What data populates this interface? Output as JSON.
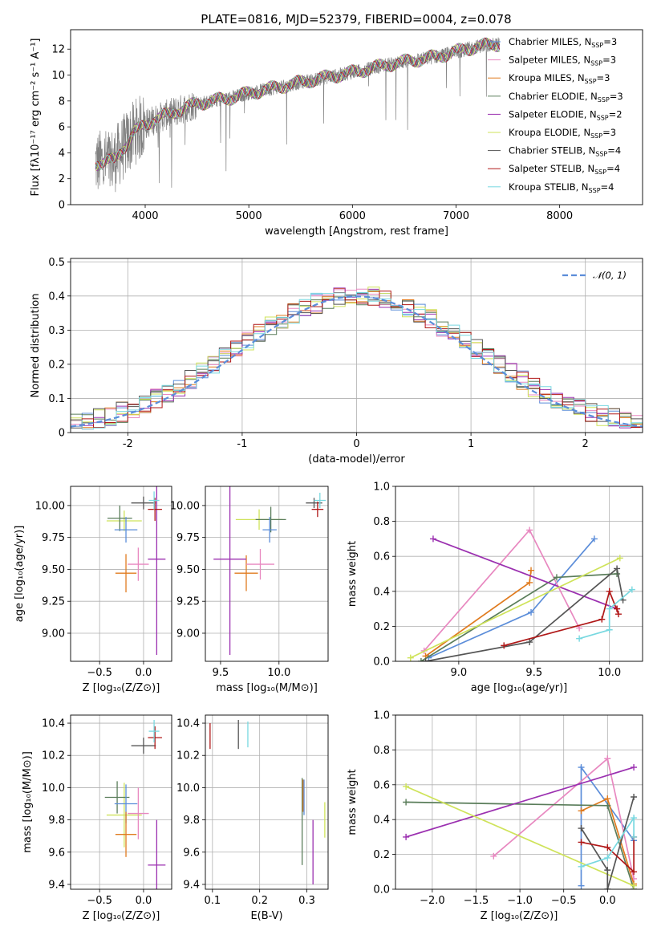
{
  "figure": {
    "title": "PLATE=0816, MJD=52379, FIBERID=0004, z=0.078"
  },
  "chart_data": [
    {
      "id": "spectrum",
      "type": "line",
      "xlabel": "wavelength [Angstrom, rest frame]",
      "ylabel": "Flux [fλ10⁻¹⁷ erg cm⁻² s⁻¹ A⁻¹]",
      "xlim": [
        3280,
        8800
      ],
      "ylim": [
        0,
        13.5
      ],
      "xticks": [
        4000,
        5000,
        6000,
        7000,
        8000
      ],
      "yticks": [
        0,
        2,
        4,
        6,
        8,
        10,
        12
      ],
      "grid": false,
      "legend_placement": "upper-right",
      "data_color": "#808080",
      "data_range": [
        3520,
        7420
      ],
      "continuum": [
        [
          3520,
          3.2
        ],
        [
          3700,
          3.4
        ],
        [
          3900,
          5.6
        ],
        [
          4000,
          6.2
        ],
        [
          4100,
          6.6
        ],
        [
          4300,
          7.2
        ],
        [
          4500,
          7.8
        ],
        [
          4800,
          8.2
        ],
        [
          5000,
          8.6
        ],
        [
          5300,
          9.1
        ],
        [
          5600,
          9.6
        ],
        [
          6000,
          10.2
        ],
        [
          6400,
          10.9
        ],
        [
          6800,
          11.4
        ],
        [
          7000,
          11.8
        ],
        [
          7200,
          12.2
        ],
        [
          7420,
          12.4
        ]
      ],
      "series": [
        {
          "name": "Chabrier MILES, N_SSP=3",
          "color": "#5b8dd9"
        },
        {
          "name": "Salpeter MILES, N_SSP=3",
          "color": "#e888c0"
        },
        {
          "name": "Kroupa MILES, N_SSP=3",
          "color": "#e07b1f"
        },
        {
          "name": "Chabrier ELODIE, N_SSP=3",
          "color": "#5a7d5a"
        },
        {
          "name": "Salpeter ELODIE, N_SSP=2",
          "color": "#9b30b0"
        },
        {
          "name": "Kroupa ELODIE, N_SSP=3",
          "color": "#cfe35a"
        },
        {
          "name": "Chabrier STELIB, N_SSP=4",
          "color": "#555555"
        },
        {
          "name": "Salpeter STELIB, N_SSP=4",
          "color": "#b01818"
        },
        {
          "name": "Kroupa STELIB, N_SSP=4",
          "color": "#78d8e0"
        }
      ]
    },
    {
      "id": "residuals",
      "type": "histogram",
      "xlabel": "(data-model)/error",
      "ylabel": "Normed distribution",
      "xlim": [
        -2.5,
        2.5
      ],
      "ylim": [
        0,
        0.51
      ],
      "xticks": [
        -2,
        -1,
        0,
        1,
        2
      ],
      "yticks": [
        0.0,
        0.1,
        0.2,
        0.3,
        0.4,
        0.5
      ],
      "grid": true,
      "legend_placement": "upper-right",
      "reference_curve": {
        "name": "𝒩(0, 1)",
        "color": "#5b8dd9",
        "style": "dashed"
      },
      "bin_width": 0.1
    },
    {
      "id": "age-vs-Z",
      "type": "errorbar",
      "xlabel": "Z [log₁₀(Z/Z⊙)]",
      "ylabel": "age  [log₁₀(age/yr)]",
      "xlim": [
        -0.83,
        0.32
      ],
      "ylim": [
        8.78,
        10.15
      ],
      "xticks": [
        -0.5,
        0.0
      ],
      "yticks": [
        9.0,
        9.25,
        9.5,
        9.75,
        10.0
      ],
      "tick_labels_x": [
        "−0.5",
        "0.0"
      ],
      "tick_labels_y": [
        "9.00",
        "9.25",
        "9.50",
        "9.75",
        "10.00"
      ],
      "grid": true,
      "points": [
        {
          "x": -0.22,
          "xerr": 0.2,
          "y": 9.88,
          "yerr": 0.08,
          "color": "#cfe35a"
        },
        {
          "x": -0.27,
          "xerr": 0.14,
          "y": 9.9,
          "yerr": 0.1,
          "color": "#5a7d5a"
        },
        {
          "x": -0.2,
          "xerr": 0.13,
          "y": 9.81,
          "yerr": 0.1,
          "color": "#5b8dd9"
        },
        {
          "x": -0.2,
          "xerr": 0.12,
          "y": 9.47,
          "yerr": 0.15,
          "color": "#e07b1f"
        },
        {
          "x": -0.06,
          "xerr": 0.12,
          "y": 9.54,
          "yerr": 0.13,
          "color": "#e888c0"
        },
        {
          "x": 0.0,
          "xerr": 0.14,
          "y": 10.02,
          "yerr": 0.05,
          "color": "#555555"
        },
        {
          "x": 0.15,
          "xerr": 0.1,
          "y": 9.58,
          "yerr": 0.75,
          "color": "#9b30b0"
        },
        {
          "x": 0.13,
          "xerr": 0.08,
          "y": 9.97,
          "yerr": 0.09,
          "color": "#b01818"
        },
        {
          "x": 0.12,
          "xerr": 0.06,
          "y": 10.04,
          "yerr": 0.07,
          "color": "#78d8e0"
        }
      ]
    },
    {
      "id": "age-vs-mass",
      "type": "errorbar",
      "xlabel": "mass [log₁₀(M/M⊙)]",
      "ylabel": "",
      "xlim": [
        9.37,
        10.42
      ],
      "ylim": [
        8.78,
        10.15
      ],
      "xticks": [
        9.5,
        10.0
      ],
      "tick_labels_x": [
        "9.5",
        "10.0"
      ],
      "tick_labels_y": [
        "9.00",
        "9.25",
        "9.50",
        "9.75",
        "10.00"
      ],
      "yticks": [
        9.0,
        9.25,
        9.5,
        9.75,
        10.0
      ],
      "grid": true,
      "points": [
        {
          "x": 9.83,
          "xerr": 0.2,
          "y": 9.89,
          "yerr": 0.08,
          "color": "#cfe35a"
        },
        {
          "x": 9.93,
          "xerr": 0.13,
          "y": 9.89,
          "yerr": 0.1,
          "color": "#5a7d5a"
        },
        {
          "x": 9.92,
          "xerr": 0.06,
          "y": 9.81,
          "yerr": 0.1,
          "color": "#5b8dd9"
        },
        {
          "x": 9.72,
          "xerr": 0.1,
          "y": 9.47,
          "yerr": 0.14,
          "color": "#e07b1f"
        },
        {
          "x": 9.84,
          "xerr": 0.12,
          "y": 9.54,
          "yerr": 0.12,
          "color": "#e888c0"
        },
        {
          "x": 9.58,
          "xerr": 0.14,
          "y": 9.58,
          "yerr": 0.75,
          "color": "#9b30b0"
        },
        {
          "x": 10.3,
          "xerr": 0.07,
          "y": 10.02,
          "yerr": 0.04,
          "color": "#555555"
        },
        {
          "x": 10.33,
          "xerr": 0.05,
          "y": 9.97,
          "yerr": 0.06,
          "color": "#b01818"
        },
        {
          "x": 10.35,
          "xerr": 0.05,
          "y": 10.04,
          "yerr": 0.06,
          "color": "#78d8e0"
        }
      ]
    },
    {
      "id": "weight-vs-age",
      "type": "line",
      "xlabel": "age  [log₁₀(age/yr)]",
      "ylabel": "mass weight",
      "xlim": [
        8.58,
        10.22
      ],
      "ylim": [
        0,
        1
      ],
      "xticks": [
        9.0,
        9.5,
        10.0
      ],
      "tick_labels_x": [
        "9.0",
        "9.5",
        "10.0"
      ],
      "yticks": [
        0,
        0.2,
        0.4,
        0.6,
        0.8,
        1.0
      ],
      "tick_labels_y": [
        "0.0",
        "0.2",
        "0.4",
        "0.6",
        "0.8",
        "1.0"
      ],
      "grid": true,
      "series": [
        {
          "color": "#5b8dd9",
          "x": [
            8.8,
            9.48,
            9.9
          ],
          "y": [
            0.02,
            0.28,
            0.7
          ]
        },
        {
          "color": "#e888c0",
          "x": [
            8.77,
            9.47,
            9.8
          ],
          "y": [
            0.06,
            0.75,
            0.19
          ]
        },
        {
          "color": "#e07b1f",
          "x": [
            8.78,
            9.47,
            9.48
          ],
          "y": [
            0.03,
            0.45,
            0.52
          ]
        },
        {
          "color": "#5a7d5a",
          "x": [
            8.75,
            9.65,
            10.05
          ],
          "y": [
            0.0,
            0.48,
            0.5
          ]
        },
        {
          "color": "#9b30b0",
          "x": [
            8.83,
            10.05
          ],
          "y": [
            0.7,
            0.3
          ]
        },
        {
          "color": "#cfe35a",
          "x": [
            8.68,
            10.07
          ],
          "y": [
            0.02,
            0.59
          ]
        },
        {
          "color": "#555555",
          "x": [
            8.78,
            9.47,
            10.05,
            10.09
          ],
          "y": [
            0.0,
            0.11,
            0.53,
            0.35
          ]
        },
        {
          "color": "#b01818",
          "x": [
            9.3,
            9.95,
            10.0,
            10.06,
            10.05
          ],
          "y": [
            0.09,
            0.24,
            0.4,
            0.27,
            0.3
          ]
        },
        {
          "color": "#78d8e0",
          "x": [
            9.8,
            10.0,
            10.0,
            10.15
          ],
          "y": [
            0.13,
            0.18,
            0.3,
            0.41
          ]
        }
      ]
    },
    {
      "id": "mass-vs-Z",
      "type": "errorbar",
      "xlabel": "Z [log₁₀(Z/Z⊙)]",
      "ylabel": "mass [log₁₀(M/M⊙)]",
      "xlim": [
        -0.83,
        0.32
      ],
      "ylim": [
        9.37,
        10.45
      ],
      "xticks": [
        -0.5,
        0.0
      ],
      "tick_labels_x": [
        "−0.5",
        "0.0"
      ],
      "yticks": [
        9.4,
        9.6,
        9.8,
        10.0,
        10.2,
        10.4
      ],
      "tick_labels_y": [
        "9.4",
        "9.6",
        "9.8",
        "10.0",
        "10.2",
        "10.4"
      ],
      "grid": true,
      "points": [
        {
          "x": -0.22,
          "xerr": 0.2,
          "y": 9.83,
          "yerr": 0.2,
          "color": "#cfe35a"
        },
        {
          "x": -0.3,
          "xerr": 0.14,
          "y": 9.94,
          "yerr": 0.1,
          "color": "#5a7d5a"
        },
        {
          "x": -0.2,
          "xerr": 0.13,
          "y": 9.9,
          "yerr": 0.12,
          "color": "#5b8dd9"
        },
        {
          "x": -0.2,
          "xerr": 0.12,
          "y": 9.71,
          "yerr": 0.14,
          "color": "#e07b1f"
        },
        {
          "x": -0.06,
          "xerr": 0.12,
          "y": 9.84,
          "yerr": 0.16,
          "color": "#e888c0"
        },
        {
          "x": 0.15,
          "xerr": 0.1,
          "y": 9.52,
          "yerr": 0.28,
          "color": "#9b30b0"
        },
        {
          "x": 0.0,
          "xerr": 0.14,
          "y": 10.26,
          "yerr": 0.05,
          "color": "#555555"
        },
        {
          "x": 0.13,
          "xerr": 0.08,
          "y": 10.31,
          "yerr": 0.07,
          "color": "#b01818"
        },
        {
          "x": 0.12,
          "xerr": 0.06,
          "y": 10.35,
          "yerr": 0.07,
          "color": "#78d8e0"
        }
      ]
    },
    {
      "id": "mass-vs-ebv",
      "type": "errorbar",
      "xlabel": "E(B-V)",
      "ylabel": "",
      "xlim": [
        0.085,
        0.345
      ],
      "ylim": [
        9.37,
        10.45
      ],
      "xticks": [
        0.1,
        0.2,
        0.3
      ],
      "tick_labels_x": [
        "0.1",
        "0.2",
        "0.3"
      ],
      "yticks": [
        9.4,
        9.6,
        9.8,
        10.0,
        10.2,
        10.4
      ],
      "tick_labels_y": [
        "9.4",
        "9.6",
        "9.8",
        "10.0",
        "10.2",
        "10.4"
      ],
      "grid": true,
      "points": [
        {
          "x": 0.095,
          "xerr": 0,
          "y": 10.32,
          "yerr": 0.08,
          "color": "#b01818"
        },
        {
          "x": 0.155,
          "xerr": 0,
          "y": 10.33,
          "yerr": 0.09,
          "color": "#555555"
        },
        {
          "x": 0.175,
          "xerr": 0,
          "y": 10.33,
          "yerr": 0.08,
          "color": "#78d8e0"
        },
        {
          "x": 0.29,
          "xerr": 0,
          "y": 9.79,
          "yerr": 0.27,
          "color": "#5a7d5a"
        },
        {
          "x": 0.292,
          "xerr": 0,
          "y": 9.95,
          "yerr": 0.1,
          "color": "#e07b1f"
        },
        {
          "x": 0.294,
          "xerr": 0,
          "y": 9.94,
          "yerr": 0.11,
          "color": "#5b8dd9"
        },
        {
          "x": 0.313,
          "xerr": 0,
          "y": 9.6,
          "yerr": 0.2,
          "color": "#9b30b0"
        },
        {
          "x": 0.338,
          "xerr": 0,
          "y": 9.8,
          "yerr": 0.11,
          "color": "#cfe35a"
        }
      ]
    },
    {
      "id": "weight-vs-Z",
      "type": "line",
      "xlabel": "Z [log₁₀(Z/Z⊙)]",
      "ylabel": "mass weight",
      "xlim": [
        -2.42,
        0.4
      ],
      "ylim": [
        0,
        1
      ],
      "xticks": [
        -2.0,
        -1.5,
        -1.0,
        -0.5,
        0.0
      ],
      "tick_labels_x": [
        "−2.0",
        "−1.5",
        "−1.0",
        "−0.5",
        "0.0"
      ],
      "yticks": [
        0,
        0.2,
        0.4,
        0.6,
        0.8,
        1.0
      ],
      "tick_labels_y": [
        "0.0",
        "0.2",
        "0.4",
        "0.6",
        "0.8",
        "1.0"
      ],
      "grid": true,
      "series": [
        {
          "color": "#5b8dd9",
          "x": [
            -0.3,
            -0.3,
            0.3
          ],
          "y": [
            0.02,
            0.7,
            0.28
          ]
        },
        {
          "color": "#e888c0",
          "x": [
            -1.3,
            0.0,
            0.3
          ],
          "y": [
            0.19,
            0.75,
            0.06
          ]
        },
        {
          "color": "#e07b1f",
          "x": [
            -0.3,
            0.0,
            0.3
          ],
          "y": [
            0.45,
            0.52,
            0.03
          ]
        },
        {
          "color": "#5a7d5a",
          "x": [
            -2.3,
            0.0,
            0.3
          ],
          "y": [
            0.5,
            0.48,
            0.0
          ]
        },
        {
          "color": "#9b30b0",
          "x": [
            -2.3,
            0.3
          ],
          "y": [
            0.3,
            0.7
          ]
        },
        {
          "color": "#cfe35a",
          "x": [
            -2.3,
            0.3
          ],
          "y": [
            0.59,
            0.02
          ]
        },
        {
          "color": "#555555",
          "x": [
            -0.3,
            0.0,
            0.0,
            0.3
          ],
          "y": [
            0.35,
            0.11,
            0.0,
            0.53
          ]
        },
        {
          "color": "#b01818",
          "x": [
            -0.3,
            0.0,
            0.3,
            0.3
          ],
          "y": [
            0.27,
            0.24,
            0.1,
            0.3
          ]
        },
        {
          "color": "#78d8e0",
          "x": [
            -0.3,
            0.0,
            0.3,
            0.3
          ],
          "y": [
            0.13,
            0.18,
            0.41,
            0.3
          ]
        }
      ]
    }
  ]
}
